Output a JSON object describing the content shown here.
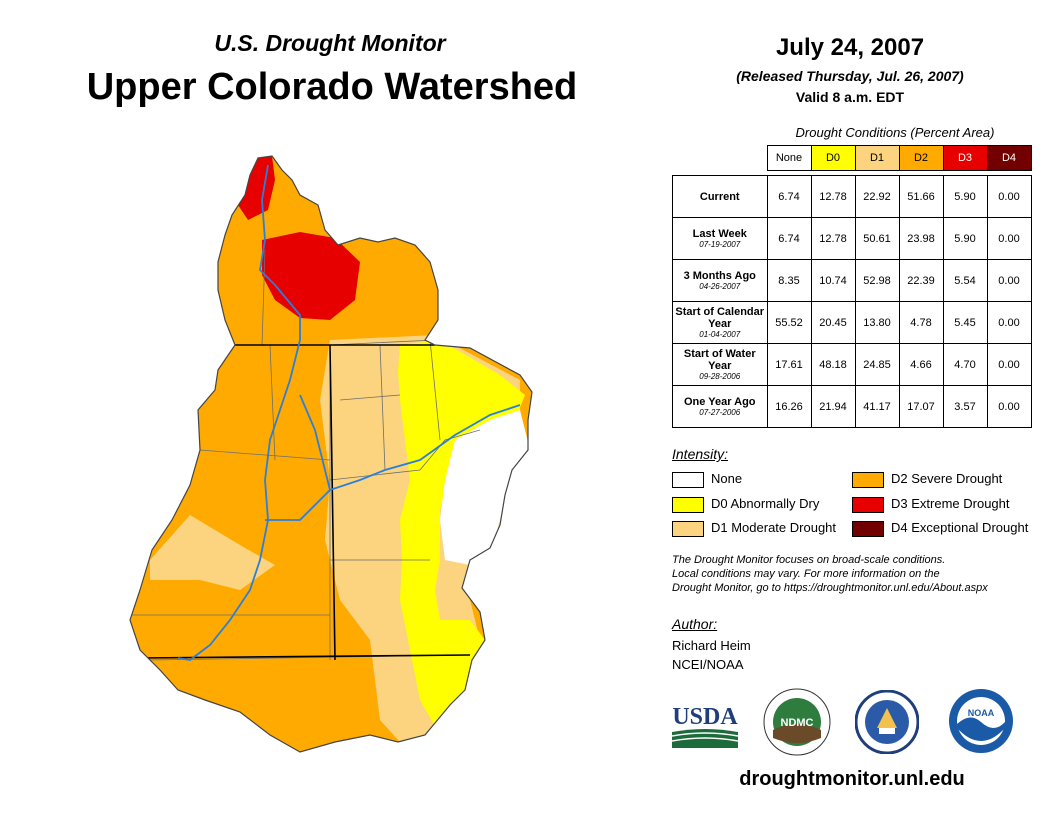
{
  "header": {
    "subtitle": "U.S. Drought Monitor",
    "title": "Upper Colorado Watershed",
    "date": "July 24, 2007",
    "released": "(Released Thursday, Jul. 26, 2007)",
    "valid": "Valid 8 a.m. EDT"
  },
  "table": {
    "caption": "Drought Conditions (Percent Area)",
    "columns": [
      "None",
      "D0",
      "D1",
      "D2",
      "D3",
      "D4"
    ],
    "column_colors": [
      "#ffffff",
      "#ffff00",
      "#fcd37f",
      "#ffaa00",
      "#e60000",
      "#730000"
    ],
    "rows": [
      {
        "label": "Current",
        "sublabel": "",
        "values": [
          "6.74",
          "12.78",
          "22.92",
          "51.66",
          "5.90",
          "0.00"
        ]
      },
      {
        "label": "Last Week",
        "sublabel": "07-19-2007",
        "values": [
          "6.74",
          "12.78",
          "50.61",
          "23.98",
          "5.90",
          "0.00"
        ]
      },
      {
        "label": "3 Months Ago",
        "sublabel": "04-26-2007",
        "values": [
          "8.35",
          "10.74",
          "52.98",
          "22.39",
          "5.54",
          "0.00"
        ]
      },
      {
        "label": "Start of Calendar Year",
        "sublabel": "01-04-2007",
        "values": [
          "55.52",
          "20.45",
          "13.80",
          "4.78",
          "5.45",
          "0.00"
        ]
      },
      {
        "label": "Start of Water Year",
        "sublabel": "09-28-2006",
        "values": [
          "17.61",
          "48.18",
          "24.85",
          "4.66",
          "4.70",
          "0.00"
        ]
      },
      {
        "label": "One Year Ago",
        "sublabel": "07-27-2006",
        "values": [
          "16.26",
          "21.94",
          "41.17",
          "17.07",
          "3.57",
          "0.00"
        ]
      }
    ]
  },
  "legend": {
    "title": "Intensity:",
    "items": [
      {
        "label": "None",
        "color": "#ffffff"
      },
      {
        "label": "D0 Abnormally Dry",
        "color": "#ffff00"
      },
      {
        "label": "D1 Moderate Drought",
        "color": "#fcd37f"
      },
      {
        "label": "D2 Severe Drought",
        "color": "#ffaa00"
      },
      {
        "label": "D3 Extreme Drought",
        "color": "#e60000"
      },
      {
        "label": "D4 Exceptional Drought",
        "color": "#730000"
      }
    ]
  },
  "note": {
    "line1": "The Drought Monitor focuses on broad-scale conditions.",
    "line2": "Local conditions may vary. For more information on the",
    "line3": "Drought Monitor, go to https://droughtmonitor.unl.edu/About.aspx"
  },
  "author": {
    "label": "Author:",
    "name": "Richard Heim",
    "org": "NCEI/NOAA"
  },
  "logos": {
    "usda": "USDA",
    "ndmc": "NDMC",
    "noaa": "NOAA"
  },
  "footer": {
    "website": "droughtmonitor.unl.edu"
  }
}
